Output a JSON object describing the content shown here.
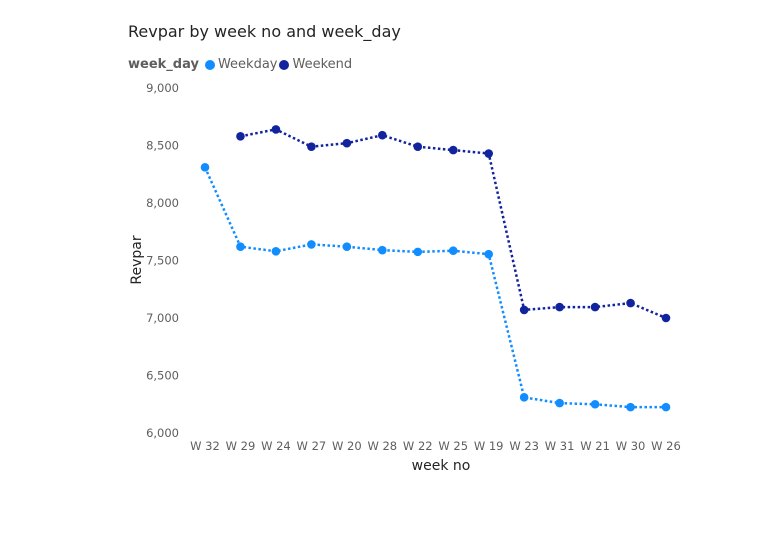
{
  "chart_data": {
    "type": "line",
    "title": "Revpar by week no and week_day",
    "xlabel": "week no",
    "ylabel": "Revpar",
    "legend_title": "week_day",
    "legend_position": "top-left",
    "ylim": [
      6000,
      9000
    ],
    "y_ticks": [
      6000,
      6500,
      7000,
      7500,
      8000,
      8500,
      9000
    ],
    "y_tick_labels": [
      "6,000",
      "6,500",
      "7,000",
      "7,500",
      "8,000",
      "8,500",
      "9,000"
    ],
    "grid": false,
    "categories": [
      "W 32",
      "W 29",
      "W 24",
      "W 27",
      "W 20",
      "W 28",
      "W 22",
      "W 25",
      "W 19",
      "W 23",
      "W 31",
      "W 21",
      "W 30",
      "W 26"
    ],
    "series": [
      {
        "name": "Weekday",
        "color": "#118dff",
        "values": [
          8310,
          7620,
          7580,
          7640,
          7620,
          7590,
          7575,
          7585,
          7555,
          6310,
          6260,
          6250,
          6225,
          6225
        ]
      },
      {
        "name": "Weekend",
        "color": "#12239e",
        "values": [
          null,
          8580,
          8640,
          8490,
          8520,
          8590,
          8490,
          8460,
          8430,
          7070,
          7095,
          7095,
          7130,
          7000
        ]
      }
    ]
  }
}
